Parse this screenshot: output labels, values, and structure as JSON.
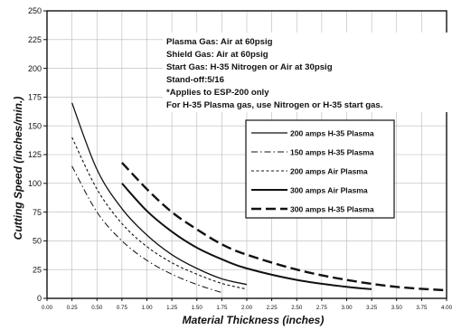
{
  "chart_data": {
    "type": "line",
    "title": "",
    "xlabel": "Material Thickness (inches)",
    "ylabel": "Cutting Speed (inches/min.)",
    "xlim": [
      0,
      4.0
    ],
    "ylim": [
      0,
      250
    ],
    "x_ticks": [
      "0.00",
      "0.25",
      "0.50",
      "0.75",
      "1.00",
      "1.25",
      "1.50",
      "1.75",
      "2.00",
      "2.25",
      "2.50",
      "2.75",
      "3.00",
      "3.25",
      "3.50",
      "3.75",
      "4.00"
    ],
    "y_ticks": [
      "0",
      "25",
      "50",
      "75",
      "100",
      "125",
      "150",
      "175",
      "200",
      "225",
      "250"
    ],
    "grid": true,
    "legend_position": "center-right",
    "notes": [
      "Plasma Gas: Air at 60psig",
      "Shield Gas: Air at 60psig",
      "Start Gas: H-35 Nitrogen or Air at 30psig",
      "Stand-off:5/16",
      "*Applies to ESP-200 only",
      "For H-35 Plasma gas, use  Nitrogen or H-35 start gas."
    ],
    "series": [
      {
        "name": "200 amps H-35 Plasma",
        "style": "solid-thin",
        "x": [
          0.25,
          0.5,
          0.75,
          1.0,
          1.25,
          1.5,
          1.75,
          2.0
        ],
        "y": [
          170,
          112,
          78,
          55,
          38,
          26,
          17,
          12
        ]
      },
      {
        "name": "150 amps H-35 Plasma",
        "style": "dash-dot",
        "x": [
          0.25,
          0.5,
          0.75,
          1.0,
          1.25,
          1.5,
          1.75
        ],
        "y": [
          115,
          75,
          50,
          33,
          21,
          12,
          5
        ]
      },
      {
        "name": "200 amps Air Plasma",
        "style": "short-dash",
        "x": [
          0.25,
          0.5,
          0.75,
          1.0,
          1.25,
          1.5,
          1.75,
          2.0
        ],
        "y": [
          140,
          95,
          65,
          45,
          31,
          21,
          13,
          8
        ]
      },
      {
        "name": "300 amps Air Plasma",
        "style": "solid-thick",
        "x": [
          0.75,
          1.0,
          1.25,
          1.5,
          1.75,
          2.0,
          2.5,
          3.0,
          3.25
        ],
        "y": [
          100,
          76,
          58,
          44,
          34,
          26,
          16,
          10,
          8
        ]
      },
      {
        "name": "300 amps H-35 Plasma",
        "style": "long-dash",
        "x": [
          0.75,
          1.0,
          1.25,
          1.5,
          1.75,
          2.0,
          2.5,
          3.0,
          3.5,
          4.0
        ],
        "y": [
          118,
          95,
          75,
          60,
          47,
          38,
          25,
          16,
          10,
          7
        ]
      }
    ]
  }
}
